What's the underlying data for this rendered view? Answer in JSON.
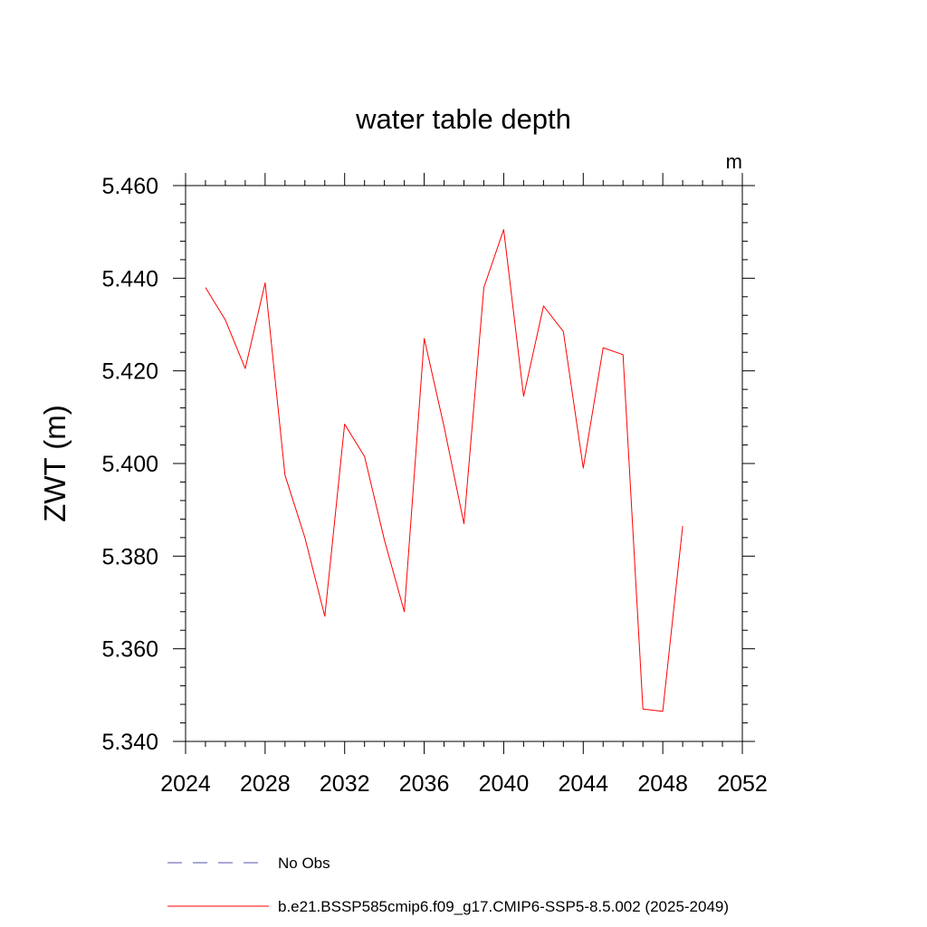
{
  "chart_data": {
    "type": "line",
    "title": "water table depth",
    "units": "m",
    "ylabel": "ZWT  (m)",
    "xlabel": "",
    "xlim": [
      2024,
      2052
    ],
    "ylim": [
      5.34,
      5.46
    ],
    "x_ticks": [
      2024,
      2028,
      2032,
      2036,
      2040,
      2044,
      2048,
      2052
    ],
    "x_tick_labels": [
      "2024",
      "2028",
      "2032",
      "2036",
      "2040",
      "2044",
      "2048",
      "2052"
    ],
    "y_ticks": [
      5.34,
      5.36,
      5.38,
      5.4,
      5.42,
      5.44,
      5.46
    ],
    "y_tick_labels": [
      "5.340",
      "5.360",
      "5.380",
      "5.400",
      "5.420",
      "5.440",
      "5.460"
    ],
    "grid": false,
    "legend_position": "bottom",
    "series": [
      {
        "name": "b.e21.BSSP585cmip6.f09_g17.CMIP6-SSP5-8.5.002 (2025-2049)",
        "color": "#ff0000",
        "dash": "solid",
        "x": [
          2025,
          2026,
          2027,
          2028,
          2029,
          2030,
          2031,
          2032,
          2033,
          2034,
          2035,
          2036,
          2037,
          2038,
          2039,
          2040,
          2041,
          2042,
          2043,
          2044,
          2045,
          2046,
          2047,
          2048,
          2049
        ],
        "values": [
          5.438,
          5.431,
          5.4205,
          5.439,
          5.3975,
          5.384,
          5.367,
          5.4085,
          5.4015,
          5.3835,
          5.368,
          5.427,
          5.408,
          5.387,
          5.438,
          5.4505,
          5.4145,
          5.434,
          5.4285,
          5.399,
          5.425,
          5.4235,
          5.347,
          5.3465,
          5.3865
        ]
      }
    ],
    "legend": [
      {
        "label": "No Obs",
        "color": "#5555aa",
        "dash": "dashed"
      },
      {
        "label": "b.e21.BSSP585cmip6.f09_g17.CMIP6-SSP5-8.5.002 (2025-2049)",
        "color": "#ff0000",
        "dash": "solid"
      }
    ]
  }
}
